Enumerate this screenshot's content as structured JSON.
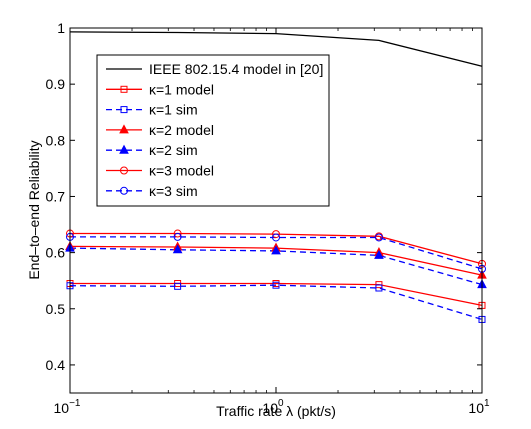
{
  "chart_data": {
    "type": "line",
    "xscale": "log",
    "xlim": [
      0.1,
      10
    ],
    "ylim": [
      0.35,
      1.0
    ],
    "xlabel": "Traffic rate λ (pkt/s)",
    "ylabel": "End–to–end Reliability",
    "yticks": [
      0.4,
      0.5,
      0.6,
      0.7,
      0.8,
      0.9,
      1
    ],
    "ytick_labels": [
      "0.4",
      "0.5",
      "0.6",
      "0.7",
      "0.8",
      "0.9",
      "1"
    ],
    "xticks": [
      {
        "value": 0.1,
        "base": "10",
        "exp": "−1"
      },
      {
        "value": 1,
        "base": "10",
        "exp": "0"
      },
      {
        "value": 10,
        "base": "10",
        "exp": "1"
      }
    ],
    "grid": false,
    "legend_position": "upper-left",
    "x": [
      0.1,
      0.333,
      1,
      3.16,
      10
    ],
    "series": [
      {
        "name": "IEEE 802.15.4 model in [20]",
        "color": "#000000",
        "dash": "solid",
        "marker": "none",
        "values": [
          0.993,
          0.992,
          0.99,
          0.978,
          0.932
        ]
      },
      {
        "name": "κ=1 model",
        "color": "#ff0000",
        "dash": "solid",
        "marker": "square",
        "values": [
          0.545,
          0.545,
          0.545,
          0.543,
          0.506
        ]
      },
      {
        "name": "κ=1 sim",
        "color": "#0000ff",
        "dash": "dashed",
        "marker": "square",
        "values": [
          0.541,
          0.54,
          0.542,
          0.537,
          0.481
        ]
      },
      {
        "name": "κ=2 model",
        "color": "#ff0000",
        "dash": "solid",
        "marker": "triangle",
        "values": [
          0.611,
          0.61,
          0.608,
          0.6,
          0.56
        ]
      },
      {
        "name": "κ=2 sim",
        "color": "#0000ff",
        "dash": "dashed",
        "marker": "triangle",
        "values": [
          0.608,
          0.605,
          0.603,
          0.595,
          0.543
        ]
      },
      {
        "name": "κ=3 model",
        "color": "#ff0000",
        "dash": "solid",
        "marker": "circle",
        "values": [
          0.634,
          0.634,
          0.633,
          0.629,
          0.58
        ]
      },
      {
        "name": "κ=3 sim",
        "color": "#0000ff",
        "dash": "dashed",
        "marker": "circle",
        "values": [
          0.628,
          0.628,
          0.627,
          0.627,
          0.571
        ]
      }
    ]
  }
}
